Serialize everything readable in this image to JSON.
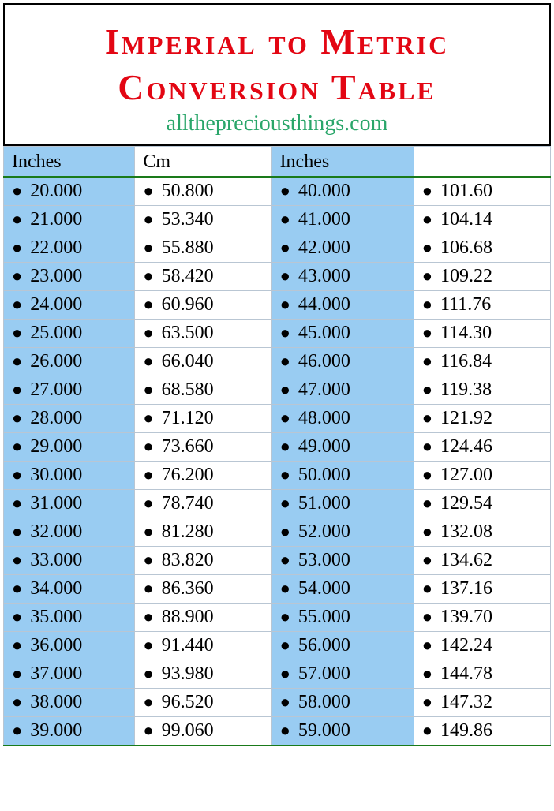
{
  "title_line1": "Imperial to Metric",
  "title_line2": "Conversion Table",
  "subtitle": "allthepreciousthings.com",
  "columns": [
    "Inches",
    "Cm",
    "Inches",
    ""
  ],
  "column_bg": [
    "blue",
    "white",
    "blue",
    "white"
  ],
  "col_widths_pct": [
    24,
    25,
    26,
    25
  ],
  "colors": {
    "title": "#e30613",
    "subtitle": "#2aa66a",
    "blue_cell": "#99ccf2",
    "border": "#b9c6d3",
    "header_underline": "#1a7a1a",
    "text": "#000000",
    "background": "#ffffff"
  },
  "typography": {
    "title_fontsize": 46,
    "subtitle_fontsize": 28,
    "cell_fontsize": 24,
    "font_family": "Times New Roman"
  },
  "bullet_char": "●",
  "rows": [
    [
      "20.000",
      "50.800",
      "40.000",
      "101.60"
    ],
    [
      "21.000",
      "53.340",
      "41.000",
      "104.14"
    ],
    [
      "22.000",
      "55.880",
      "42.000",
      "106.68"
    ],
    [
      "23.000",
      "58.420",
      "43.000",
      "109.22"
    ],
    [
      "24.000",
      "60.960",
      "44.000",
      "111.76"
    ],
    [
      "25.000",
      "63.500",
      "45.000",
      "114.30"
    ],
    [
      "26.000",
      "66.040",
      "46.000",
      "116.84"
    ],
    [
      "27.000",
      "68.580",
      "47.000",
      "119.38"
    ],
    [
      "28.000",
      "71.120",
      "48.000",
      "121.92"
    ],
    [
      "29.000",
      "73.660",
      "49.000",
      "124.46"
    ],
    [
      "30.000",
      "76.200",
      "50.000",
      "127.00"
    ],
    [
      "31.000",
      "78.740",
      "51.000",
      "129.54"
    ],
    [
      "32.000",
      "81.280",
      "52.000",
      "132.08"
    ],
    [
      "33.000",
      "83.820",
      "53.000",
      "134.62"
    ],
    [
      "34.000",
      "86.360",
      "54.000",
      "137.16"
    ],
    [
      "35.000",
      "88.900",
      "55.000",
      "139.70"
    ],
    [
      "36.000",
      "91.440",
      "56.000",
      "142.24"
    ],
    [
      "37.000",
      "93.980",
      "57.000",
      "144.78"
    ],
    [
      "38.000",
      "96.520",
      "58.000",
      "147.32"
    ],
    [
      "39.000",
      "99.060",
      "59.000",
      "149.86"
    ]
  ]
}
